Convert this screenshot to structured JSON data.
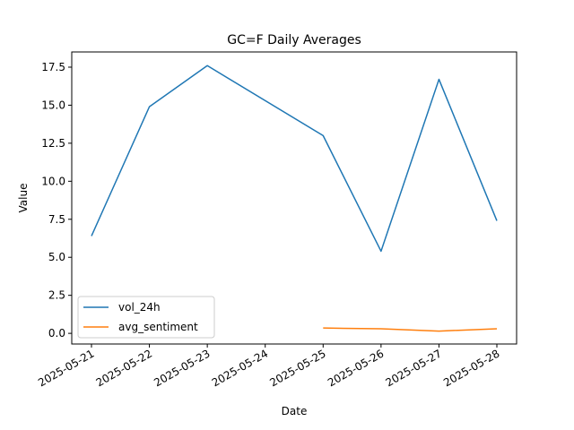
{
  "chart_data": {
    "type": "line",
    "title": "GC=F Daily Averages",
    "xlabel": "Date",
    "ylabel": "Value",
    "x": [
      "2025-05-21",
      "2025-05-22",
      "2025-05-23",
      "2025-05-24",
      "2025-05-25",
      "2025-05-26",
      "2025-05-27",
      "2025-05-28"
    ],
    "x_ticks": [
      "2025-05-21",
      "2025-05-22",
      "2025-05-23",
      "2025-05-24",
      "2025-05-25",
      "2025-05-26",
      "2025-05-27",
      "2025-05-28"
    ],
    "y_ticks": [
      "0.0",
      "2.5",
      "5.0",
      "7.5",
      "10.0",
      "12.5",
      "15.0",
      "17.5"
    ],
    "ylim": [
      -0.7,
      18.5
    ],
    "series": [
      {
        "name": "vol_24h",
        "color": "#1f77b4",
        "points": [
          {
            "x": "2025-05-21",
            "y": 6.4
          },
          {
            "x": "2025-05-22",
            "y": 14.9
          },
          {
            "x": "2025-05-23",
            "y": 17.6
          },
          {
            "x": "2025-05-25",
            "y": 13.0
          },
          {
            "x": "2025-05-26",
            "y": 5.4
          },
          {
            "x": "2025-05-27",
            "y": 16.7
          },
          {
            "x": "2025-05-28",
            "y": 7.4
          }
        ]
      },
      {
        "name": "avg_sentiment",
        "color": "#ff7f0e",
        "points": [
          {
            "x": "2025-05-25",
            "y": 0.35
          },
          {
            "x": "2025-05-26",
            "y": 0.3
          },
          {
            "x": "2025-05-27",
            "y": 0.15
          },
          {
            "x": "2025-05-28",
            "y": 0.3
          }
        ]
      }
    ],
    "grid": false,
    "legend": "lower-left"
  }
}
